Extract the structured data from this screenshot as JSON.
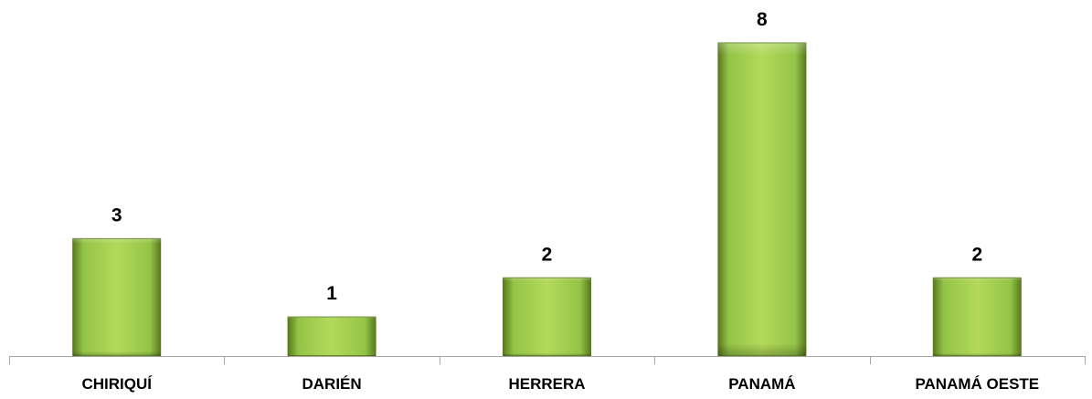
{
  "chart_data": {
    "type": "bar",
    "categories": [
      "CHIRIQUÍ",
      "DARIÉN",
      "HERRERA",
      "PANAMÁ",
      "PANAMÁ OESTE"
    ],
    "values": [
      3,
      1,
      2,
      8,
      2
    ],
    "data_labels": [
      "3",
      "1",
      "2",
      "8",
      "2"
    ],
    "title": "",
    "xlabel": "",
    "ylabel": "",
    "ylim": [
      0,
      8
    ],
    "grid": false,
    "legend": "none",
    "colors": {
      "bar_light": "#b4d95a",
      "bar_mid": "#93c447",
      "bar_dark": "#5a7a1e",
      "axis": "#a6a6a6"
    }
  }
}
